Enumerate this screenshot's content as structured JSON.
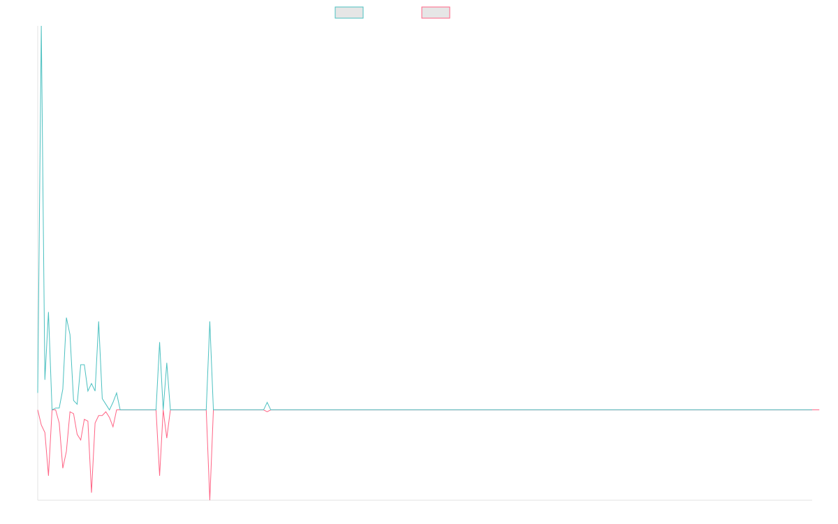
{
  "chart_data": {
    "type": "line",
    "title": "",
    "xlabel": "",
    "ylabel": "",
    "grid": false,
    "legend_position": "top-center",
    "ylim": [
      -24,
      102
    ],
    "series": [
      {
        "name": "",
        "color": "#4bc0c0",
        "fill": "#e6e6e6",
        "values": [
          4.5,
          102,
          8,
          26,
          0,
          0.5,
          0.5,
          5.5,
          24.5,
          20,
          2.5,
          1.5,
          12,
          12,
          5,
          7,
          5,
          23.5,
          3,
          1.5,
          0,
          2,
          4.5,
          0,
          0,
          0,
          0,
          0,
          0,
          0,
          0,
          0,
          0,
          0,
          18,
          0,
          12.5,
          0,
          0,
          0,
          0,
          0,
          0,
          0,
          0,
          0,
          0,
          0,
          23.5,
          0,
          0,
          0,
          0,
          0,
          0,
          0,
          0,
          0,
          0,
          0,
          0,
          0,
          0,
          0,
          2,
          0,
          0,
          0,
          0,
          0,
          0,
          0,
          0,
          0,
          0,
          0,
          0,
          0,
          0,
          0,
          0,
          0,
          0,
          0,
          0,
          0,
          0,
          0,
          0,
          0,
          0,
          0,
          0,
          0,
          0,
          0,
          0,
          0,
          0,
          0,
          0,
          0,
          0,
          0,
          0,
          0,
          0,
          0,
          0,
          0,
          0,
          0,
          0,
          0,
          0,
          0,
          0,
          0,
          0,
          0,
          0,
          0,
          0,
          0,
          0,
          0,
          0,
          0,
          0,
          0,
          0,
          0,
          0,
          0,
          0,
          0,
          0,
          0,
          0,
          0,
          0,
          0,
          0,
          0,
          0,
          0,
          0,
          0,
          0,
          0,
          0,
          0,
          0,
          0,
          0,
          0,
          0,
          0,
          0,
          0,
          0,
          0,
          0,
          0,
          0,
          0,
          0,
          0,
          0,
          0,
          0,
          0,
          0,
          0,
          0,
          0,
          0,
          0,
          0,
          0,
          0,
          0,
          0,
          0,
          0,
          0,
          0,
          0,
          0,
          0,
          0,
          0,
          0,
          0,
          0,
          0,
          0,
          0,
          0,
          0,
          0,
          0,
          0,
          0,
          0,
          0,
          0,
          0,
          0,
          0,
          0,
          0,
          0,
          0,
          0,
          0,
          0
        ]
      },
      {
        "name": "",
        "color": "#ff6384",
        "fill": "#e6e6e6",
        "values": [
          0,
          -4,
          -6,
          -17.5,
          0,
          0,
          -3.5,
          -15.5,
          -11,
          -0.5,
          -1,
          -6.5,
          -8,
          -2.5,
          -3,
          -22,
          -3.5,
          -1.5,
          -1.5,
          -0.5,
          -2,
          -4.5,
          0,
          0,
          0,
          0,
          0,
          0,
          0,
          0,
          0,
          0,
          0,
          0,
          -17.5,
          0,
          -7.5,
          0,
          0,
          0,
          0,
          0,
          0,
          0,
          0,
          0,
          0,
          0,
          -24,
          0,
          0,
          0,
          0,
          0,
          0,
          0,
          0,
          0,
          0,
          0,
          0,
          0,
          0,
          0,
          -0.5,
          0,
          0,
          0,
          0,
          0,
          0,
          0,
          0,
          0,
          0,
          0,
          0,
          0,
          0,
          0,
          0,
          0,
          0,
          0,
          0,
          0,
          0,
          0,
          0,
          0,
          0,
          0,
          0,
          0,
          0,
          0,
          0,
          0,
          0,
          0,
          0,
          0,
          0,
          0,
          0,
          0,
          0,
          0,
          0,
          0,
          0,
          0,
          0,
          0,
          0,
          0,
          0,
          0,
          0,
          0,
          0,
          0,
          0,
          0,
          0,
          0,
          0,
          0,
          0,
          0,
          0,
          0,
          0,
          0,
          0,
          0,
          0,
          0,
          0,
          0,
          0,
          0,
          0,
          0,
          0,
          0,
          0,
          0,
          0,
          0,
          0,
          0,
          0,
          0,
          0,
          0,
          0,
          0,
          0,
          0,
          0,
          0,
          0,
          0,
          0,
          0,
          0,
          0,
          0,
          0,
          0,
          0,
          0,
          0,
          0,
          0,
          0,
          0,
          0,
          0,
          0,
          0,
          0,
          0,
          0,
          0,
          0,
          0,
          0,
          0,
          0,
          0,
          0,
          0,
          0,
          0,
          0,
          0,
          0,
          0,
          0,
          0,
          0,
          0,
          0,
          0,
          0,
          0,
          0,
          0,
          0,
          0,
          0,
          0,
          0,
          0,
          0,
          0,
          0
        ]
      }
    ]
  }
}
